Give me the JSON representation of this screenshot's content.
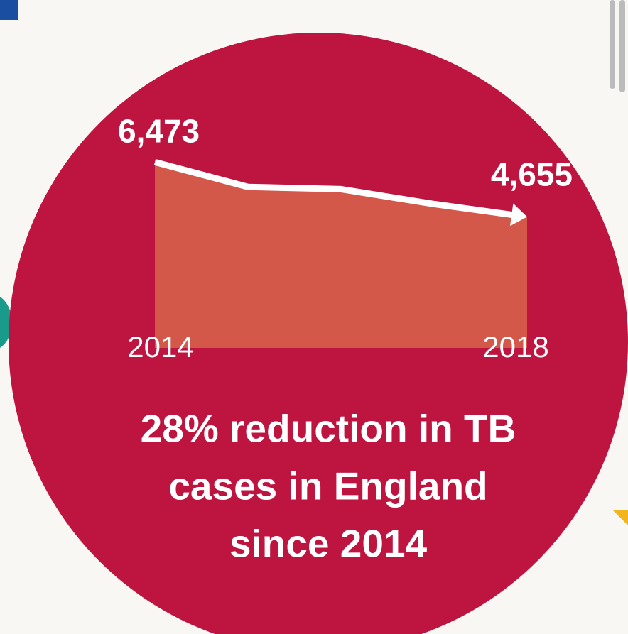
{
  "chart_data": {
    "type": "area",
    "x": [
      2014,
      2015,
      2016,
      2017,
      2018
    ],
    "values": [
      6473,
      5650,
      5575,
      5080,
      4655
    ],
    "value_labels": [
      "6,473",
      null,
      null,
      null,
      "4,655"
    ],
    "xlim": [
      2014,
      2018
    ],
    "xticks": [
      2014,
      2018
    ],
    "ylim": [
      300,
      7000
    ],
    "color": "#d4584a",
    "line_color": "#ffffff",
    "annotations": [
      "28% reduction in TB",
      "cases in England",
      "since 2014"
    ]
  }
}
